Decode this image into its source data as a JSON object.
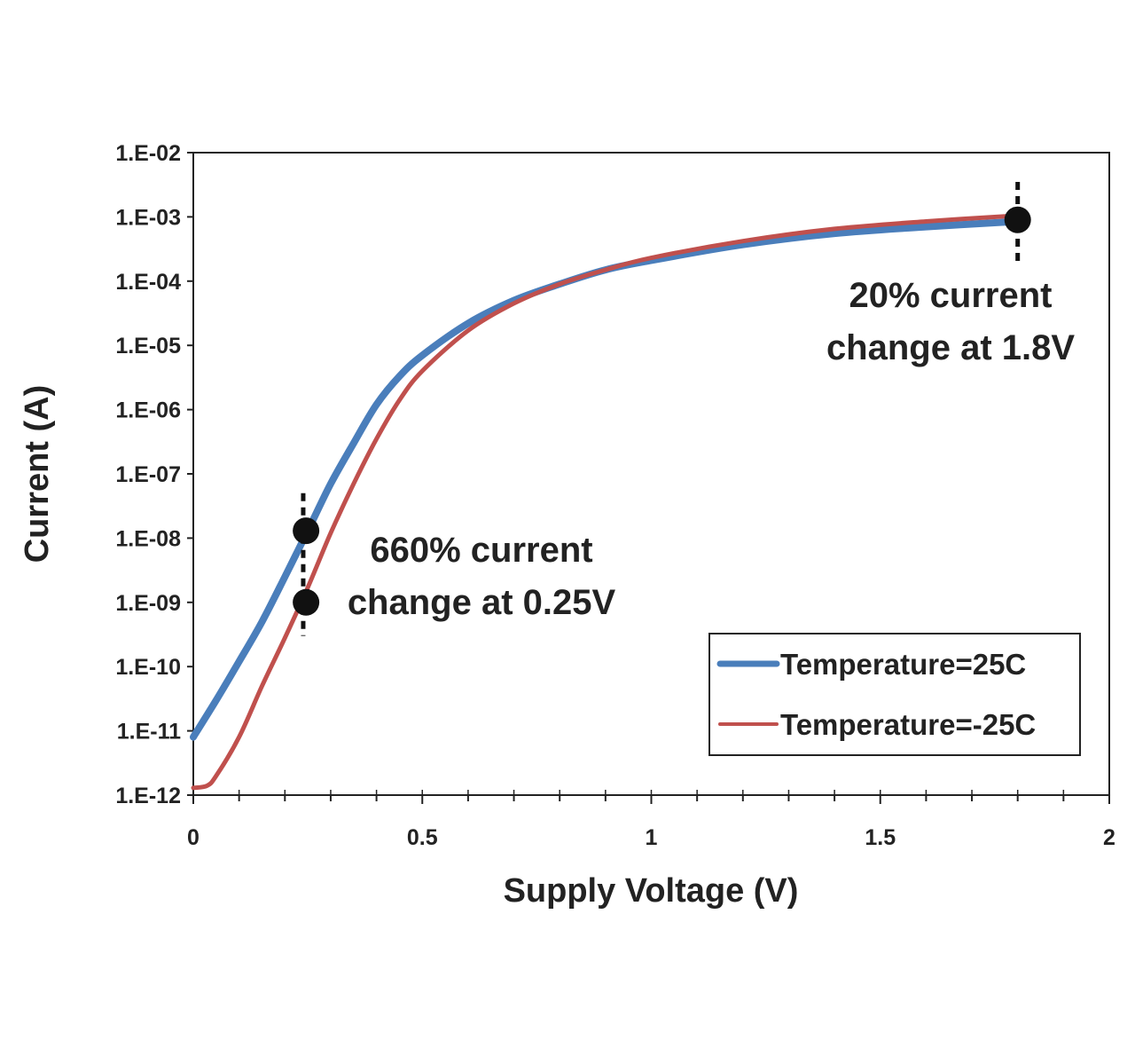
{
  "chart_data": {
    "type": "line",
    "xlabel": "Supply Voltage (V)",
    "ylabel": "Current (A)",
    "xlim": [
      0,
      2
    ],
    "ylim_log10": [
      -12,
      -2
    ],
    "y_scale": "log",
    "x_tick_labels": [
      "0",
      "0.5",
      "1",
      "1.5",
      "2"
    ],
    "x_tick_values": [
      0,
      0.5,
      1,
      1.5,
      2
    ],
    "y_tick_labels": [
      "1.E-02",
      "1.E-03",
      "1.E-04",
      "1.E-05",
      "1.E-06",
      "1.E-07",
      "1.E-08",
      "1.E-09",
      "1.E-10",
      "1.E-11",
      "1.E-12"
    ],
    "y_tick_values": [
      0.01,
      0.001,
      0.0001,
      1e-05,
      1e-06,
      1e-07,
      1e-08,
      1e-09,
      1e-10,
      1e-11,
      1e-12
    ],
    "grid": false,
    "legend_position": "bottom-right",
    "series": [
      {
        "name": "Temperature=25C",
        "color": "#4a7ebb",
        "x": [
          0,
          0.05,
          0.1,
          0.15,
          0.2,
          0.25,
          0.3,
          0.35,
          0.4,
          0.45,
          0.5,
          0.6,
          0.7,
          0.8,
          0.9,
          1.0,
          1.2,
          1.4,
          1.6,
          1.8
        ],
        "y": [
          8e-12,
          3e-11,
          1.2e-10,
          5e-10,
          2.5e-09,
          1.3e-08,
          7e-08,
          3e-07,
          1.2e-06,
          3.3e-06,
          7e-06,
          2.2e-05,
          5e-05,
          9e-05,
          0.00015,
          0.00021,
          0.00037,
          0.00055,
          0.0007,
          0.00085
        ]
      },
      {
        "name": "Temperature=-25C",
        "color": "#c0504d",
        "x": [
          0,
          0.03,
          0.05,
          0.1,
          0.15,
          0.2,
          0.25,
          0.3,
          0.35,
          0.4,
          0.45,
          0.5,
          0.6,
          0.7,
          0.8,
          0.9,
          1.0,
          1.2,
          1.4,
          1.6,
          1.8
        ],
        "y": [
          1.3e-12,
          1.4e-12,
          2e-12,
          8e-12,
          5e-11,
          2.8e-10,
          1.7e-09,
          1.2e-08,
          7e-08,
          3.5e-07,
          1.4e-06,
          4e-06,
          1.7e-05,
          4.5e-05,
          9e-05,
          0.00015,
          0.00023,
          0.00042,
          0.00065,
          0.00085,
          0.00105
        ]
      }
    ],
    "markers": [
      {
        "x": 0.25,
        "y": 1.3e-08
      },
      {
        "x": 0.25,
        "y": 1e-09
      },
      {
        "x": 1.8,
        "y": 0.0009
      }
    ],
    "annotations": [
      {
        "lines": [
          "660% current",
          "change at 0.25V"
        ]
      },
      {
        "lines": [
          "20% current",
          "change at 1.8V"
        ]
      }
    ]
  }
}
